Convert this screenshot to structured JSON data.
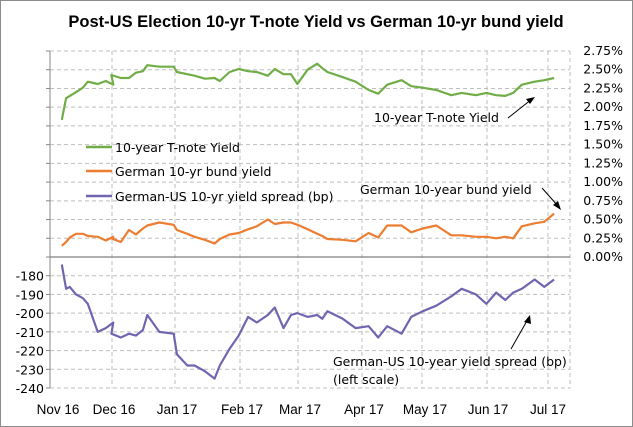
{
  "chart_data": {
    "type": "line",
    "title": "Post-US Election 10-yr T-note Yield vs German 10-yr bund yield",
    "xlabel": "",
    "x_tick_labels": [
      "Nov 16",
      "Dec 16",
      "Jan 17",
      "Feb 17",
      "Mar 17",
      "Apr 17",
      "May 17",
      "Jun 17",
      "Jul 17"
    ],
    "right_axis": {
      "label": "",
      "ylim": [
        0,
        2.75
      ],
      "tick_labels": [
        "2.75%",
        "2.50%",
        "2.25%",
        "2.00%",
        "1.75%",
        "1.50%",
        "1.25%",
        "1.00%",
        "0.75%",
        "0.50%",
        "0.25%",
        "0.00%"
      ]
    },
    "left_axis": {
      "label": "",
      "ylim": [
        -240,
        -170
      ],
      "tick_labels": [
        "-180",
        "-190",
        "-200",
        "-210",
        "-220",
        "-230",
        "-240"
      ]
    },
    "grid": true,
    "legend": {
      "placement": "left-middle",
      "entries": [
        {
          "name": "10-year T-note Yield",
          "color": "#70ad47"
        },
        {
          "name": "German 10-yr bund yield",
          "color": "#ed7d31"
        },
        {
          "name": "German-US 10-yr yield spread (bp)",
          "color": "#7265b0"
        }
      ]
    },
    "x_months_elapsed": [
      0.19,
      0.26,
      0.32,
      0.42,
      0.53,
      0.61,
      0.77,
      0.9,
      1.02,
      0.99,
      1.14,
      1.27,
      1.38,
      1.49,
      1.56,
      1.75,
      1.98,
      2.03,
      2.19,
      2.3,
      2.46,
      2.61,
      2.69,
      2.84,
      2.98,
      3.14,
      3.29,
      3.48,
      3.6,
      3.75,
      3.88,
      3.99,
      4.15,
      4.3,
      4.38,
      4.46,
      4.7,
      4.9,
      5.11,
      5.27,
      5.42,
      5.66,
      5.82,
      6.01,
      6.22,
      6.45,
      6.61,
      6.83,
      6.99,
      7.15,
      7.3,
      7.43,
      7.57,
      7.78,
      7.94,
      8.1
    ],
    "series": [
      {
        "name": "10-year T-note Yield",
        "axis": "right",
        "color": "#70ad47",
        "values": [
          1.83,
          2.12,
          2.15,
          2.2,
          2.26,
          2.34,
          2.31,
          2.35,
          2.3,
          2.43,
          2.39,
          2.39,
          2.46,
          2.48,
          2.56,
          2.54,
          2.54,
          2.47,
          2.44,
          2.42,
          2.38,
          2.39,
          2.35,
          2.47,
          2.51,
          2.48,
          2.47,
          2.42,
          2.51,
          2.44,
          2.44,
          2.31,
          2.5,
          2.58,
          2.52,
          2.47,
          2.4,
          2.34,
          2.23,
          2.18,
          2.3,
          2.36,
          2.28,
          2.26,
          2.23,
          2.16,
          2.19,
          2.16,
          2.19,
          2.16,
          2.15,
          2.19,
          2.3,
          2.34,
          2.36,
          2.39
        ]
      },
      {
        "name": "German 10-yr bund yield",
        "axis": "right",
        "color": "#ed7d31",
        "values": [
          0.15,
          0.2,
          0.26,
          0.31,
          0.31,
          0.28,
          0.27,
          0.22,
          0.27,
          0.25,
          0.2,
          0.36,
          0.3,
          0.38,
          0.42,
          0.46,
          0.43,
          0.36,
          0.31,
          0.27,
          0.23,
          0.18,
          0.24,
          0.3,
          0.32,
          0.37,
          0.41,
          0.5,
          0.44,
          0.46,
          0.46,
          0.43,
          0.37,
          0.31,
          0.28,
          0.24,
          0.23,
          0.21,
          0.32,
          0.26,
          0.42,
          0.42,
          0.33,
          0.38,
          0.42,
          0.29,
          0.29,
          0.27,
          0.27,
          0.25,
          0.27,
          0.25,
          0.41,
          0.45,
          0.47,
          0.58
        ]
      },
      {
        "name": "German-US 10-yr yield spread (bp)",
        "axis": "left",
        "color": "#7265b0",
        "values": [
          -174,
          -187,
          -186,
          -190,
          -192,
          -195,
          -210,
          -208,
          -205,
          -211,
          -213,
          -211,
          -212,
          -209,
          -201,
          -210,
          -211,
          -222,
          -228,
          -228,
          -231,
          -235,
          -228,
          -219,
          -212,
          -202,
          -205,
          -201,
          -197,
          -208,
          -201,
          -200,
          -202,
          -201,
          -203,
          -199,
          -203,
          -208,
          -207,
          -213,
          -207,
          -211,
          -202,
          -199,
          -196,
          -191,
          -187,
          -190,
          -195,
          -189,
          -193,
          -189,
          -187,
          -182,
          -186,
          -182
        ]
      }
    ],
    "annotations": [
      {
        "text": "10-year T-note Yield",
        "points_to": "10-year T-note Yield",
        "near": "Jun 17"
      },
      {
        "text": "German 10-year bund  yield",
        "points_to": "German 10-yr bund yield",
        "near": "Jul 17"
      },
      {
        "text": "German-US  10-year yield spread (bp)",
        "text_line2": "(left scale)",
        "points_to": "German-US 10-yr yield spread (bp)",
        "near": "Jun 17"
      }
    ]
  }
}
